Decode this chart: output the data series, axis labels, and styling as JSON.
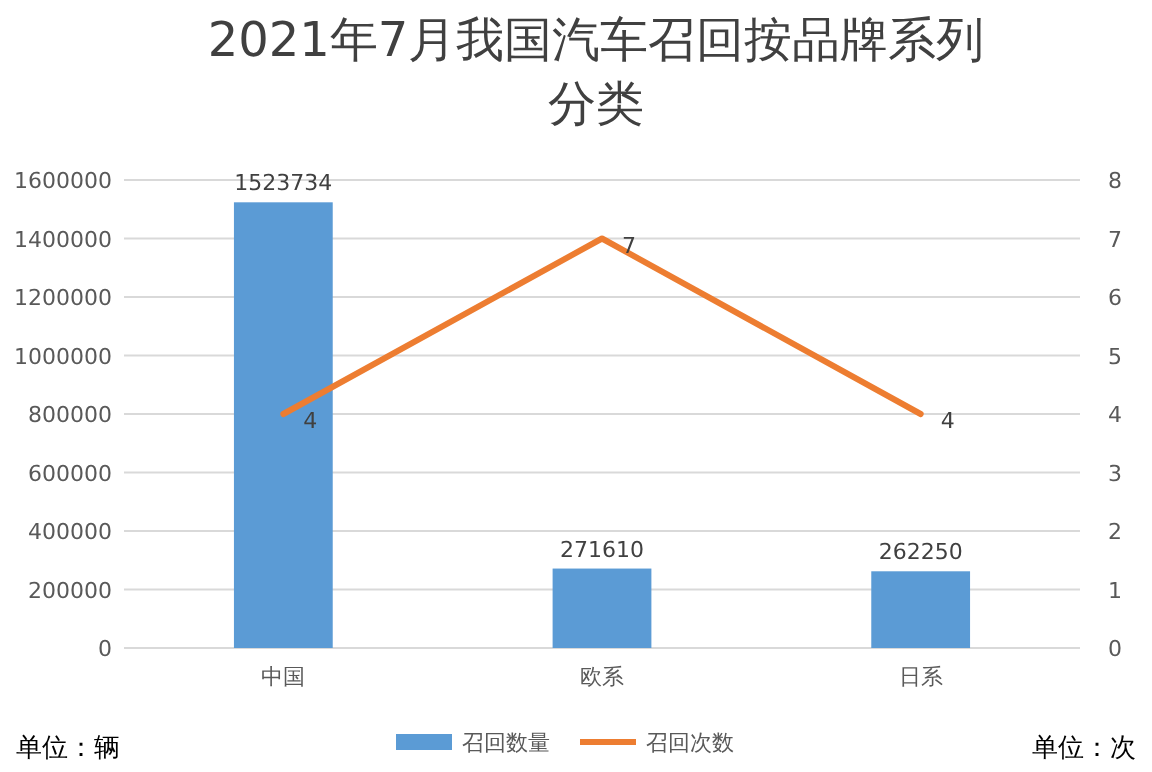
{
  "chart_data": {
    "type": "bar",
    "title": "2021年7月我国汽车召回按品牌系列分类",
    "categories": [
      "中国",
      "欧系",
      "日系"
    ],
    "series": [
      {
        "name": "召回数量",
        "color": "#5b9bd5",
        "values": [
          1523734,
          271610,
          262250
        ]
      },
      {
        "name": "召回次数",
        "type": "line",
        "axis": "y2",
        "color": "#ed7d31",
        "values": [
          4,
          7,
          4
        ]
      }
    ],
    "ylabel": "单位：辆",
    "y2label": "单位：次",
    "ylim": [
      0,
      1600000
    ],
    "yticks": [
      0,
      200000,
      400000,
      600000,
      800000,
      1000000,
      1200000,
      1400000,
      1600000
    ],
    "y2lim": [
      0,
      8
    ],
    "y2ticks": [
      0,
      1,
      2,
      3,
      4,
      5,
      6,
      7,
      8
    ],
    "grid": "y",
    "legend": "bottom",
    "data_labels": true,
    "marker": "none",
    "line_style": "solid"
  }
}
